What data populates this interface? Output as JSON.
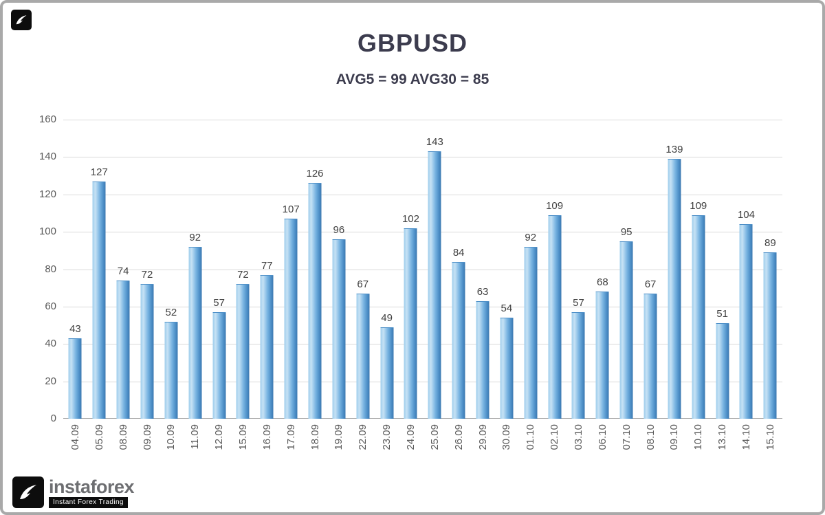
{
  "chart_data": {
    "type": "bar",
    "title": "GBPUSD",
    "subtitle": "AVG5 = 99 AVG30 = 85",
    "avg5": 99,
    "avg30": 85,
    "categories": [
      "04.09",
      "05.09",
      "08.09",
      "09.09",
      "10.09",
      "11.09",
      "12.09",
      "15.09",
      "16.09",
      "17.09",
      "18.09",
      "19.09",
      "22.09",
      "23.09",
      "24.09",
      "25.09",
      "26.09",
      "29.09",
      "30.09",
      "01.10",
      "02.10",
      "03.10",
      "06.10",
      "07.10",
      "08.10",
      "09.10",
      "10.10",
      "13.10",
      "14.10",
      "15.10"
    ],
    "values": [
      43,
      127,
      74,
      72,
      52,
      92,
      57,
      72,
      77,
      107,
      126,
      96,
      67,
      49,
      102,
      143,
      84,
      63,
      54,
      92,
      109,
      57,
      68,
      95,
      67,
      139,
      109,
      51,
      104,
      89
    ],
    "xlabel": "",
    "ylabel": "",
    "ylim": [
      0,
      160
    ],
    "y_ticks": [
      0,
      20,
      40,
      60,
      80,
      100,
      120,
      140,
      160
    ],
    "grid": true,
    "legend": "none",
    "bar_color_light": "#c6e2f5",
    "bar_color_dark": "#3b78b0",
    "label_color": "#404040",
    "axis_text_color": "#595959",
    "title_color": "#3c3c4e"
  },
  "branding": {
    "logo_text": "instaforex",
    "tagline": "Instant Forex Trading"
  }
}
